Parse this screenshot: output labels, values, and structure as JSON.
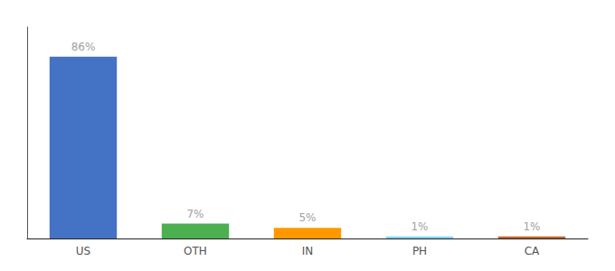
{
  "chart_data": {
    "type": "bar",
    "categories": [
      "US",
      "OTH",
      "IN",
      "PH",
      "CA"
    ],
    "values": [
      86,
      7,
      5,
      1,
      1
    ],
    "value_labels": [
      "86%",
      "7%",
      "5%",
      "1%",
      "1%"
    ],
    "colors": [
      "#4472c4",
      "#4caf50",
      "#ff9800",
      "#81d4fa",
      "#c0622a"
    ],
    "ylim": [
      0,
      100
    ],
    "data_labels": true,
    "tick_labels": "x",
    "grid": false
  }
}
